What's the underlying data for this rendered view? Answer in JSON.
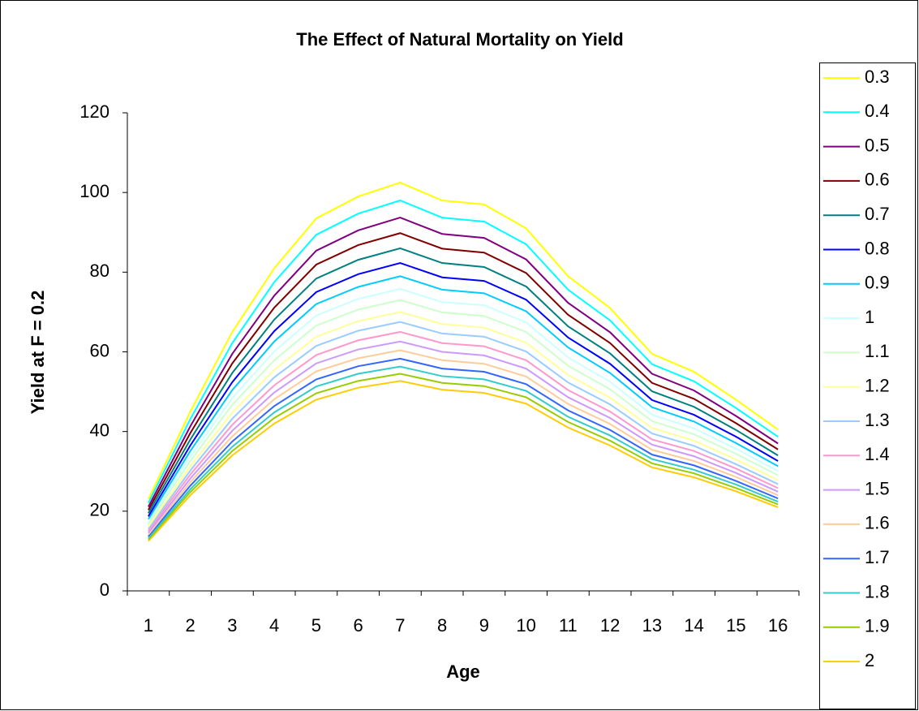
{
  "chart_data": {
    "type": "line",
    "title": "The Effect of Natural Mortality on Yield",
    "x_label": "Age",
    "y_label": "Yield at F = 0.2",
    "categories": [
      "1",
      "2",
      "3",
      "4",
      "5",
      "6",
      "7",
      "8",
      "9",
      "10",
      "11",
      "12",
      "13",
      "14",
      "15",
      "16"
    ],
    "ylim": [
      0,
      120
    ],
    "yticks": [
      0,
      20,
      40,
      60,
      80,
      100,
      120
    ],
    "grid": false,
    "legend": "right",
    "series": [
      {
        "name": "0.3",
        "color": "#ffff00",
        "values": [
          23,
          45,
          65,
          81,
          93.5,
          99,
          102.5,
          98,
          97,
          91,
          79,
          71,
          59.5,
          55,
          48,
          40.5
        ]
      },
      {
        "name": "0.4",
        "color": "#00ffff",
        "values": [
          22.1,
          43.1,
          62.2,
          77.5,
          89.4,
          94.7,
          98.0,
          93.7,
          92.7,
          87.0,
          75.6,
          67.9,
          56.9,
          52.6,
          45.9,
          38.7
        ]
      },
      {
        "name": "0.5",
        "color": "#800080",
        "values": [
          21.1,
          41.3,
          59.5,
          74.1,
          85.4,
          90.5,
          93.7,
          89.6,
          88.6,
          83.2,
          72.3,
          64.9,
          54.5,
          50.3,
          43.9,
          37.0
        ]
      },
      {
        "name": "0.6",
        "color": "#800000",
        "values": [
          20.3,
          39.6,
          57.1,
          71.1,
          81.9,
          86.8,
          89.8,
          85.9,
          84.9,
          79.8,
          69.3,
          62.2,
          52.2,
          48.2,
          42.1,
          35.5
        ]
      },
      {
        "name": "0.7",
        "color": "#008080",
        "values": [
          19.5,
          38.0,
          54.7,
          68.1,
          78.4,
          83.1,
          86.0,
          82.3,
          81.3,
          76.4,
          66.4,
          59.6,
          50.1,
          46.2,
          40.4,
          34.0
        ]
      },
      {
        "name": "0.8",
        "color": "#0000ff",
        "values": [
          18.7,
          36.5,
          52.4,
          65.2,
          75.0,
          79.5,
          82.3,
          78.7,
          77.8,
          73.1,
          63.6,
          57.0,
          47.9,
          44.2,
          38.7,
          32.6
        ]
      },
      {
        "name": "0.9",
        "color": "#00ccff",
        "values": [
          18.0,
          35.1,
          50.4,
          62.6,
          72.0,
          76.3,
          79.0,
          75.6,
          74.7,
          70.2,
          61.1,
          54.7,
          46.1,
          42.5,
          37.1,
          31.3
        ]
      },
      {
        "name": "1",
        "color": "#ccffff",
        "values": [
          17.4,
          33.7,
          48.4,
          60.1,
          69.1,
          73.3,
          75.8,
          72.5,
          71.7,
          67.4,
          58.6,
          52.5,
          44.2,
          40.8,
          35.7,
          30.1
        ]
      },
      {
        "name": "1.1",
        "color": "#ccffcc",
        "values": [
          16.8,
          32.6,
          46.7,
          57.9,
          66.6,
          70.6,
          73.0,
          69.9,
          69.0,
          65.0,
          56.5,
          50.6,
          42.6,
          39.3,
          34.4,
          29.0
        ]
      },
      {
        "name": "1.2",
        "color": "#ffff99",
        "values": [
          16.1,
          31.3,
          44.8,
          55.5,
          63.8,
          67.7,
          70.0,
          67.0,
          66.1,
          62.3,
          54.2,
          48.5,
          40.9,
          37.7,
          33.0,
          27.8
        ]
      },
      {
        "name": "1.3",
        "color": "#99ccff",
        "values": [
          15.6,
          30.2,
          43.2,
          53.6,
          61.5,
          65.3,
          67.5,
          64.6,
          63.8,
          60.1,
          52.3,
          46.8,
          39.5,
          36.4,
          31.8,
          26.8
        ]
      },
      {
        "name": "1.4",
        "color": "#ff99cc",
        "values": [
          15.1,
          29.2,
          41.7,
          51.6,
          59.2,
          62.9,
          65.0,
          62.2,
          61.4,
          57.9,
          50.4,
          45.0,
          38.0,
          35.1,
          30.7,
          25.8
        ]
      },
      {
        "name": "1.5",
        "color": "#cc99ff",
        "values": [
          14.6,
          28.2,
          40.2,
          49.8,
          57.1,
          60.6,
          62.6,
          60.0,
          59.1,
          55.8,
          48.6,
          43.4,
          36.7,
          33.8,
          29.6,
          24.9
        ]
      },
      {
        "name": "1.6",
        "color": "#ffcc99",
        "values": [
          14.1,
          27.3,
          38.8,
          48.1,
          55.1,
          58.4,
          60.4,
          57.9,
          57.0,
          53.8,
          46.9,
          41.9,
          35.4,
          32.6,
          28.6,
          24.0
        ]
      },
      {
        "name": "1.7",
        "color": "#3366ff",
        "values": [
          13.7,
          26.4,
          37.5,
          46.4,
          53.1,
          56.4,
          58.3,
          55.8,
          55.0,
          51.9,
          45.3,
          40.4,
          34.2,
          31.5,
          27.6,
          23.2
        ]
      },
      {
        "name": "1.8",
        "color": "#33cccc",
        "values": [
          13.3,
          25.5,
          36.2,
          44.8,
          51.3,
          54.5,
          56.3,
          53.9,
          53.1,
          50.2,
          43.7,
          39.0,
          33.1,
          30.4,
          26.7,
          22.4
        ]
      },
      {
        "name": "1.9",
        "color": "#99cc00",
        "values": [
          12.9,
          24.8,
          35.1,
          43.4,
          49.6,
          52.7,
          54.5,
          52.2,
          51.4,
          48.6,
          42.4,
          37.7,
          32.0,
          29.5,
          25.8,
          21.7
        ]
      },
      {
        "name": "2",
        "color": "#ffcc00",
        "values": [
          12.5,
          24,
          34,
          42,
          48,
          51,
          52.7,
          50.5,
          49.7,
          47,
          41,
          36.5,
          31,
          28.5,
          25,
          21
        ]
      }
    ]
  }
}
